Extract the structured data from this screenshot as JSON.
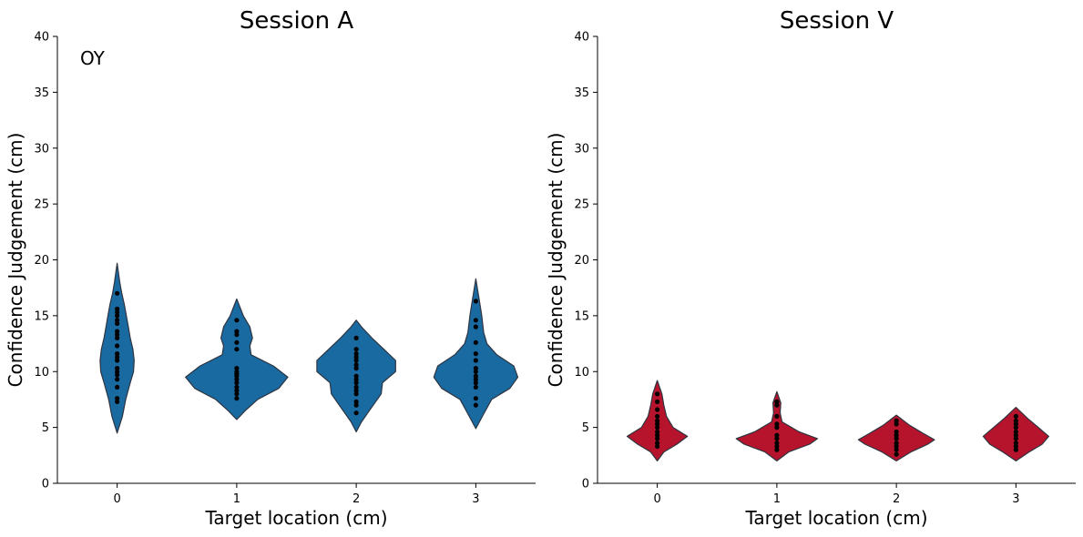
{
  "chart_data": [
    {
      "type": "violin",
      "title": "Session A",
      "xlabel": "Target location (cm)",
      "ylabel": "Confidence Judgement (cm)",
      "annotation": "OY",
      "categories": [
        "0",
        "1",
        "2",
        "3"
      ],
      "ylim": [
        0,
        40
      ],
      "yticks": [
        0,
        5,
        10,
        15,
        20,
        25,
        30,
        35,
        40
      ],
      "color": "#1a6aa2",
      "grid": false,
      "groups": [
        {
          "points": [
            7.3,
            7.6,
            8.6,
            9.3,
            9.7,
            10.0,
            10.3,
            11.0,
            11.3,
            11.6,
            12.3,
            13.0,
            13.3,
            13.6,
            14.3,
            14.6,
            15.0,
            15.3,
            15.6,
            17.0
          ],
          "range": [
            4.5,
            19.7
          ],
          "widths": [
            [
              4.5,
              0
            ],
            [
              6,
              0.08
            ],
            [
              7.5,
              0.13
            ],
            [
              9,
              0.2
            ],
            [
              10,
              0.25
            ],
            [
              11,
              0.26
            ],
            [
              12,
              0.24
            ],
            [
              13,
              0.2
            ],
            [
              14,
              0.17
            ],
            [
              15,
              0.14
            ],
            [
              16,
              0.11
            ],
            [
              17,
              0.07
            ],
            [
              18,
              0.04
            ],
            [
              19.7,
              0
            ]
          ]
        },
        {
          "points": [
            7.6,
            8.0,
            8.3,
            8.6,
            9.0,
            9.3,
            9.6,
            9.8,
            10.0,
            10.3,
            12.0,
            12.6,
            13.3,
            13.6,
            14.6
          ],
          "range": [
            5.7,
            16.5
          ],
          "widths": [
            [
              5.7,
              0
            ],
            [
              6.5,
              0.13
            ],
            [
              7.5,
              0.32
            ],
            [
              8.5,
              0.64
            ],
            [
              9.5,
              0.78
            ],
            [
              10.5,
              0.56
            ],
            [
              11.5,
              0.22
            ],
            [
              12.3,
              0.2
            ],
            [
              13,
              0.24
            ],
            [
              14,
              0.2
            ],
            [
              15,
              0.1
            ],
            [
              16.5,
              0
            ]
          ]
        },
        {
          "points": [
            6.3,
            7.0,
            7.3,
            8.0,
            8.3,
            8.6,
            9.0,
            9.3,
            9.6,
            10.3,
            10.6,
            11.0,
            11.3,
            11.6,
            12.0,
            13.0
          ],
          "range": [
            4.6,
            14.6
          ],
          "widths": [
            [
              4.6,
              0
            ],
            [
              5.5,
              0.08
            ],
            [
              6.5,
              0.2
            ],
            [
              8,
              0.38
            ],
            [
              9,
              0.4
            ],
            [
              10,
              0.6
            ],
            [
              11,
              0.6
            ],
            [
              12,
              0.42
            ],
            [
              13,
              0.24
            ],
            [
              14,
              0.08
            ],
            [
              14.6,
              0
            ]
          ]
        },
        {
          "points": [
            7.0,
            7.6,
            8.6,
            9.0,
            9.3,
            9.6,
            10.0,
            10.3,
            11.0,
            11.6,
            12.6,
            14.0,
            14.6,
            16.3
          ],
          "range": [
            4.9,
            18.3
          ],
          "widths": [
            [
              4.9,
              0
            ],
            [
              6,
              0.1
            ],
            [
              7.5,
              0.24
            ],
            [
              8.5,
              0.52
            ],
            [
              9.5,
              0.64
            ],
            [
              10.5,
              0.58
            ],
            [
              11.5,
              0.32
            ],
            [
              12.5,
              0.17
            ],
            [
              13.5,
              0.12
            ],
            [
              15,
              0.09
            ],
            [
              16.5,
              0.05
            ],
            [
              18.3,
              0
            ]
          ]
        }
      ]
    },
    {
      "type": "violin",
      "title": "Session V",
      "xlabel": "Target location (cm)",
      "ylabel": "Confidence Judgement (cm)",
      "categories": [
        "0",
        "1",
        "2",
        "3"
      ],
      "ylim": [
        0,
        40
      ],
      "yticks": [
        0,
        5,
        10,
        15,
        20,
        25,
        30,
        35,
        40
      ],
      "color": "#b5142c",
      "grid": false,
      "groups": [
        {
          "points": [
            3.3,
            3.6,
            4.0,
            4.3,
            4.6,
            5.0,
            5.3,
            5.6,
            6.0,
            6.6,
            7.3,
            8.0
          ],
          "range": [
            2.0,
            9.2
          ],
          "widths": [
            [
              2.0,
              0
            ],
            [
              2.8,
              0.1
            ],
            [
              3.5,
              0.3
            ],
            [
              4.2,
              0.46
            ],
            [
              5,
              0.24
            ],
            [
              6,
              0.14
            ],
            [
              7,
              0.1
            ],
            [
              8,
              0.07
            ],
            [
              9.2,
              0
            ]
          ]
        },
        {
          "points": [
            3.0,
            3.3,
            3.6,
            4.0,
            4.3,
            5.0,
            5.3,
            6.0,
            7.0,
            7.3
          ],
          "range": [
            2.0,
            8.2
          ],
          "widths": [
            [
              2.0,
              0
            ],
            [
              2.8,
              0.18
            ],
            [
              3.5,
              0.5
            ],
            [
              4,
              0.62
            ],
            [
              4.6,
              0.34
            ],
            [
              5.5,
              0.08
            ],
            [
              6.3,
              0.05
            ],
            [
              7.2,
              0.06
            ],
            [
              8.2,
              0
            ]
          ]
        },
        {
          "points": [
            2.6,
            3.0,
            3.3,
            3.6,
            4.0,
            4.3,
            4.6,
            5.3,
            5.6
          ],
          "range": [
            2.0,
            6.1
          ],
          "widths": [
            [
              2.0,
              0
            ],
            [
              2.8,
              0.22
            ],
            [
              3.5,
              0.48
            ],
            [
              3.9,
              0.58
            ],
            [
              4.5,
              0.4
            ],
            [
              5.2,
              0.2
            ],
            [
              6.1,
              0
            ]
          ]
        },
        {
          "points": [
            3.0,
            3.3,
            3.6,
            4.0,
            4.3,
            4.6,
            5.0,
            5.3,
            5.6,
            6.0
          ],
          "range": [
            2.0,
            6.8
          ],
          "widths": [
            [
              2.0,
              0
            ],
            [
              2.8,
              0.2
            ],
            [
              3.5,
              0.4
            ],
            [
              4.2,
              0.5
            ],
            [
              5,
              0.34
            ],
            [
              5.8,
              0.18
            ],
            [
              6.8,
              0
            ]
          ]
        }
      ]
    }
  ]
}
